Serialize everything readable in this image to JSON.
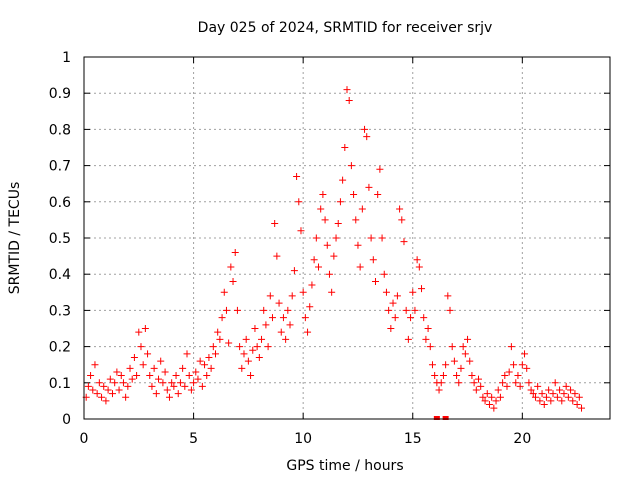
{
  "chart_data": {
    "type": "scatter",
    "title": "Day 025 of 2024, SRMTID for receiver srjv",
    "xlabel": "GPS time / hours",
    "ylabel": "SRMTID / TECUs",
    "xlim": [
      0,
      24
    ],
    "ylim": [
      0,
      1
    ],
    "xticks": [
      0,
      5,
      10,
      15,
      20
    ],
    "xtick_labels": [
      "0",
      "5",
      "10",
      "15",
      "20"
    ],
    "yticks": [
      0,
      0.1,
      0.2,
      0.3,
      0.4,
      0.5,
      0.6,
      0.7,
      0.8,
      0.9,
      1
    ],
    "ytick_labels": [
      "0",
      "0.1",
      "0.2",
      "0.3",
      "0.4",
      "0.5",
      "0.6",
      "0.7",
      "0.8",
      "0.9",
      "1"
    ],
    "grid": true,
    "marker": "+",
    "color": "#ff0000",
    "series": [
      {
        "name": "SRMTID",
        "points": [
          [
            0.1,
            0.06
          ],
          [
            0.2,
            0.09
          ],
          [
            0.3,
            0.12
          ],
          [
            0.4,
            0.08
          ],
          [
            0.5,
            0.15
          ],
          [
            0.6,
            0.07
          ],
          [
            0.7,
            0.1
          ],
          [
            0.8,
            0.06
          ],
          [
            0.9,
            0.09
          ],
          [
            1.0,
            0.05
          ],
          [
            1.1,
            0.08
          ],
          [
            1.2,
            0.11
          ],
          [
            1.3,
            0.07
          ],
          [
            1.4,
            0.1
          ],
          [
            1.5,
            0.13
          ],
          [
            1.6,
            0.08
          ],
          [
            1.7,
            0.12
          ],
          [
            1.8,
            0.1
          ],
          [
            1.9,
            0.06
          ],
          [
            2.0,
            0.09
          ],
          [
            2.1,
            0.14
          ],
          [
            2.2,
            0.11
          ],
          [
            2.3,
            0.17
          ],
          [
            2.4,
            0.12
          ],
          [
            2.5,
            0.24
          ],
          [
            2.6,
            0.2
          ],
          [
            2.7,
            0.15
          ],
          [
            2.8,
            0.25
          ],
          [
            2.9,
            0.18
          ],
          [
            3.0,
            0.12
          ],
          [
            3.1,
            0.09
          ],
          [
            3.2,
            0.14
          ],
          [
            3.3,
            0.07
          ],
          [
            3.4,
            0.11
          ],
          [
            3.5,
            0.16
          ],
          [
            3.6,
            0.1
          ],
          [
            3.7,
            0.13
          ],
          [
            3.8,
            0.08
          ],
          [
            3.9,
            0.06
          ],
          [
            4.0,
            0.1
          ],
          [
            4.1,
            0.09
          ],
          [
            4.2,
            0.12
          ],
          [
            4.3,
            0.07
          ],
          [
            4.4,
            0.1
          ],
          [
            4.5,
            0.14
          ],
          [
            4.6,
            0.09
          ],
          [
            4.7,
            0.18
          ],
          [
            4.8,
            0.12
          ],
          [
            4.9,
            0.08
          ],
          [
            5.0,
            0.1
          ],
          [
            5.1,
            0.13
          ],
          [
            5.2,
            0.11
          ],
          [
            5.3,
            0.16
          ],
          [
            5.4,
            0.09
          ],
          [
            5.5,
            0.15
          ],
          [
            5.6,
            0.12
          ],
          [
            5.7,
            0.17
          ],
          [
            5.8,
            0.14
          ],
          [
            5.9,
            0.2
          ],
          [
            6.0,
            0.18
          ],
          [
            6.1,
            0.24
          ],
          [
            6.2,
            0.22
          ],
          [
            6.3,
            0.28
          ],
          [
            6.4,
            0.35
          ],
          [
            6.5,
            0.3
          ],
          [
            6.6,
            0.21
          ],
          [
            6.7,
            0.42
          ],
          [
            6.8,
            0.38
          ],
          [
            6.9,
            0.46
          ],
          [
            7.0,
            0.3
          ],
          [
            7.1,
            0.2
          ],
          [
            7.2,
            0.14
          ],
          [
            7.3,
            0.18
          ],
          [
            7.4,
            0.22
          ],
          [
            7.5,
            0.16
          ],
          [
            7.6,
            0.12
          ],
          [
            7.7,
            0.19
          ],
          [
            7.8,
            0.25
          ],
          [
            7.9,
            0.2
          ],
          [
            8.0,
            0.17
          ],
          [
            8.1,
            0.22
          ],
          [
            8.2,
            0.3
          ],
          [
            8.3,
            0.26
          ],
          [
            8.4,
            0.2
          ],
          [
            8.5,
            0.34
          ],
          [
            8.6,
            0.28
          ],
          [
            8.7,
            0.54
          ],
          [
            8.8,
            0.45
          ],
          [
            8.9,
            0.32
          ],
          [
            9.0,
            0.24
          ],
          [
            9.1,
            0.28
          ],
          [
            9.2,
            0.22
          ],
          [
            9.3,
            0.3
          ],
          [
            9.4,
            0.26
          ],
          [
            9.5,
            0.34
          ],
          [
            9.6,
            0.41
          ],
          [
            9.7,
            0.67
          ],
          [
            9.8,
            0.6
          ],
          [
            9.9,
            0.52
          ],
          [
            10.0,
            0.35
          ],
          [
            10.1,
            0.28
          ],
          [
            10.2,
            0.24
          ],
          [
            10.3,
            0.31
          ],
          [
            10.4,
            0.37
          ],
          [
            10.5,
            0.44
          ],
          [
            10.6,
            0.5
          ],
          [
            10.7,
            0.42
          ],
          [
            10.8,
            0.58
          ],
          [
            10.9,
            0.62
          ],
          [
            11.0,
            0.55
          ],
          [
            11.1,
            0.48
          ],
          [
            11.2,
            0.4
          ],
          [
            11.3,
            0.35
          ],
          [
            11.4,
            0.45
          ],
          [
            11.5,
            0.5
          ],
          [
            11.6,
            0.54
          ],
          [
            11.7,
            0.6
          ],
          [
            11.8,
            0.66
          ],
          [
            11.9,
            0.75
          ],
          [
            12.0,
            0.91
          ],
          [
            12.1,
            0.88
          ],
          [
            12.2,
            0.7
          ],
          [
            12.3,
            0.62
          ],
          [
            12.4,
            0.55
          ],
          [
            12.5,
            0.48
          ],
          [
            12.6,
            0.42
          ],
          [
            12.7,
            0.58
          ],
          [
            12.8,
            0.8
          ],
          [
            12.9,
            0.78
          ],
          [
            13.0,
            0.64
          ],
          [
            13.1,
            0.5
          ],
          [
            13.2,
            0.44
          ],
          [
            13.3,
            0.38
          ],
          [
            13.4,
            0.62
          ],
          [
            13.5,
            0.69
          ],
          [
            13.6,
            0.5
          ],
          [
            13.7,
            0.4
          ],
          [
            13.8,
            0.35
          ],
          [
            13.9,
            0.3
          ],
          [
            14.0,
            0.25
          ],
          [
            14.1,
            0.32
          ],
          [
            14.2,
            0.28
          ],
          [
            14.3,
            0.34
          ],
          [
            14.4,
            0.58
          ],
          [
            14.5,
            0.55
          ],
          [
            14.6,
            0.49
          ],
          [
            14.7,
            0.3
          ],
          [
            14.8,
            0.22
          ],
          [
            14.9,
            0.28
          ],
          [
            15.0,
            0.35
          ],
          [
            15.1,
            0.3
          ],
          [
            15.2,
            0.44
          ],
          [
            15.3,
            0.42
          ],
          [
            15.4,
            0.36
          ],
          [
            15.5,
            0.28
          ],
          [
            15.6,
            0.22
          ],
          [
            15.7,
            0.25
          ],
          [
            15.8,
            0.2
          ],
          [
            15.9,
            0.15
          ],
          [
            16.0,
            0.12
          ],
          [
            16.1,
            0.1
          ],
          [
            16.2,
            0.08
          ],
          [
            16.3,
            0.1
          ],
          [
            16.4,
            0.12
          ],
          [
            16.5,
            0.15
          ],
          [
            16.6,
            0.34
          ],
          [
            16.7,
            0.3
          ],
          [
            16.8,
            0.2
          ],
          [
            16.9,
            0.16
          ],
          [
            17.0,
            0.12
          ],
          [
            17.1,
            0.1
          ],
          [
            17.2,
            0.14
          ],
          [
            17.3,
            0.2
          ],
          [
            17.4,
            0.18
          ],
          [
            17.5,
            0.22
          ],
          [
            17.6,
            0.16
          ],
          [
            17.7,
            0.12
          ],
          [
            17.8,
            0.1
          ],
          [
            17.9,
            0.08
          ],
          [
            18.0,
            0.11
          ],
          [
            18.1,
            0.09
          ],
          [
            18.2,
            0.06
          ],
          [
            18.3,
            0.05
          ],
          [
            18.4,
            0.07
          ],
          [
            18.5,
            0.04
          ],
          [
            18.6,
            0.06
          ],
          [
            18.7,
            0.03
          ],
          [
            18.8,
            0.05
          ],
          [
            18.9,
            0.08
          ],
          [
            19.0,
            0.06
          ],
          [
            19.1,
            0.1
          ],
          [
            19.2,
            0.12
          ],
          [
            19.3,
            0.09
          ],
          [
            19.4,
            0.13
          ],
          [
            19.5,
            0.2
          ],
          [
            19.6,
            0.15
          ],
          [
            19.7,
            0.1
          ],
          [
            19.8,
            0.12
          ],
          [
            19.9,
            0.09
          ],
          [
            20.0,
            0.15
          ],
          [
            20.1,
            0.18
          ],
          [
            20.2,
            0.14
          ],
          [
            20.3,
            0.1
          ],
          [
            20.4,
            0.08
          ],
          [
            20.5,
            0.07
          ],
          [
            20.6,
            0.06
          ],
          [
            20.7,
            0.09
          ],
          [
            20.8,
            0.05
          ],
          [
            20.9,
            0.07
          ],
          [
            21.0,
            0.04
          ],
          [
            21.1,
            0.06
          ],
          [
            21.2,
            0.08
          ],
          [
            21.3,
            0.05
          ],
          [
            21.4,
            0.07
          ],
          [
            21.5,
            0.1
          ],
          [
            21.6,
            0.06
          ],
          [
            21.7,
            0.08
          ],
          [
            21.8,
            0.05
          ],
          [
            21.9,
            0.07
          ],
          [
            22.0,
            0.09
          ],
          [
            22.1,
            0.06
          ],
          [
            22.2,
            0.08
          ],
          [
            22.3,
            0.05
          ],
          [
            22.4,
            0.07
          ],
          [
            22.5,
            0.04
          ],
          [
            22.6,
            0.06
          ],
          [
            22.7,
            0.03
          ]
        ]
      }
    ],
    "zero_markers": [
      16.1,
      16.5
    ]
  }
}
